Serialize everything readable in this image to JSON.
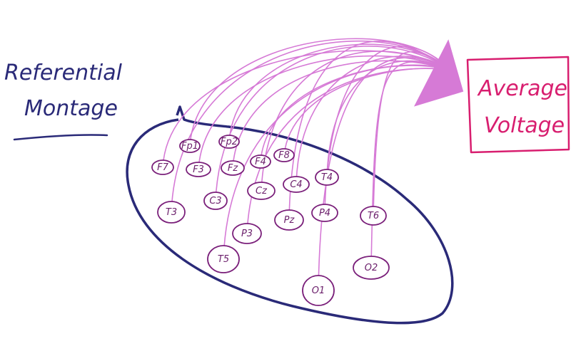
{
  "title": {
    "line1": "Referential",
    "line2": "Montage"
  },
  "target_box": {
    "line1": "Average",
    "line2": "Voltage"
  },
  "electrodes": [
    {
      "id": "fp1",
      "label": "Fp1"
    },
    {
      "id": "fp2",
      "label": "Fp2"
    },
    {
      "id": "f7",
      "label": "F7"
    },
    {
      "id": "f3",
      "label": "F3"
    },
    {
      "id": "fz",
      "label": "Fz"
    },
    {
      "id": "f4",
      "label": "F4"
    },
    {
      "id": "f8",
      "label": "F8"
    },
    {
      "id": "t3",
      "label": "T3"
    },
    {
      "id": "c3",
      "label": "C3"
    },
    {
      "id": "cz",
      "label": "Cz"
    },
    {
      "id": "c4",
      "label": "C4"
    },
    {
      "id": "t4",
      "label": "T4"
    },
    {
      "id": "t5",
      "label": "T5"
    },
    {
      "id": "p3",
      "label": "P3"
    },
    {
      "id": "pz",
      "label": "Pz"
    },
    {
      "id": "p4",
      "label": "P4"
    },
    {
      "id": "t6",
      "label": "T6"
    },
    {
      "id": "o1",
      "label": "O1"
    },
    {
      "id": "o2",
      "label": "O2"
    }
  ],
  "colors": {
    "head_outline": "#2a2a78",
    "electrode_outline": "#7a1f7a",
    "connection_lines": "#d67ad6",
    "arrow_fill": "#d67ad6",
    "target_box": "#d81e6f",
    "title_text": "#2a2a78"
  }
}
